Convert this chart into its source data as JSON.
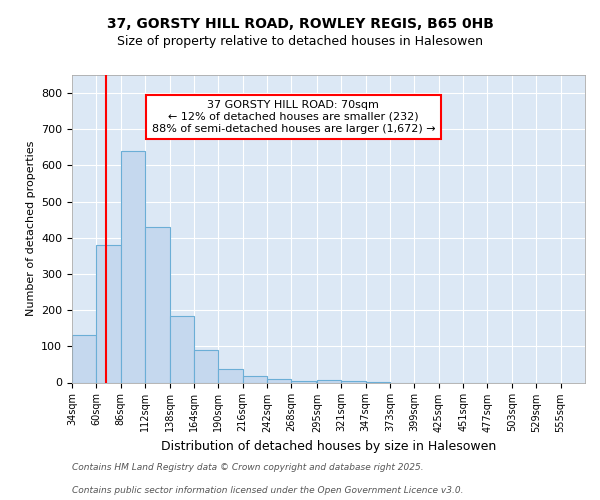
{
  "title1": "37, GORSTY HILL ROAD, ROWLEY REGIS, B65 0HB",
  "title2": "Size of property relative to detached houses in Halesowen",
  "xlabel": "Distribution of detached houses by size in Halesowen",
  "ylabel": "Number of detached properties",
  "footer1": "Contains HM Land Registry data © Crown copyright and database right 2025.",
  "footer2": "Contains public sector information licensed under the Open Government Licence v3.0.",
  "annotation_line1": "37 GORSTY HILL ROAD: 70sqm",
  "annotation_line2": "← 12% of detached houses are smaller (232)",
  "annotation_line3": "88% of semi-detached houses are larger (1,672) →",
  "bar_color": "#c5d8ee",
  "bar_edge_color": "#6baed6",
  "red_line_x": 70,
  "categories": [
    "34sqm",
    "60sqm",
    "86sqm",
    "112sqm",
    "138sqm",
    "164sqm",
    "190sqm",
    "216sqm",
    "242sqm",
    "268sqm",
    "295sqm",
    "321sqm",
    "347sqm",
    "373sqm",
    "399sqm",
    "425sqm",
    "451sqm",
    "477sqm",
    "503sqm",
    "529sqm",
    "555sqm"
  ],
  "bin_edges": [
    34,
    60,
    86,
    112,
    138,
    164,
    190,
    216,
    242,
    268,
    295,
    321,
    347,
    373,
    399,
    425,
    451,
    477,
    503,
    529,
    555
  ],
  "values": [
    130,
    380,
    640,
    430,
    185,
    90,
    37,
    17,
    10,
    5,
    8,
    5,
    2,
    0,
    0,
    0,
    0,
    0,
    0,
    0
  ],
  "ylim": [
    0,
    850
  ],
  "fig_bg_color": "#ffffff",
  "plot_bg_color": "#dce8f5"
}
